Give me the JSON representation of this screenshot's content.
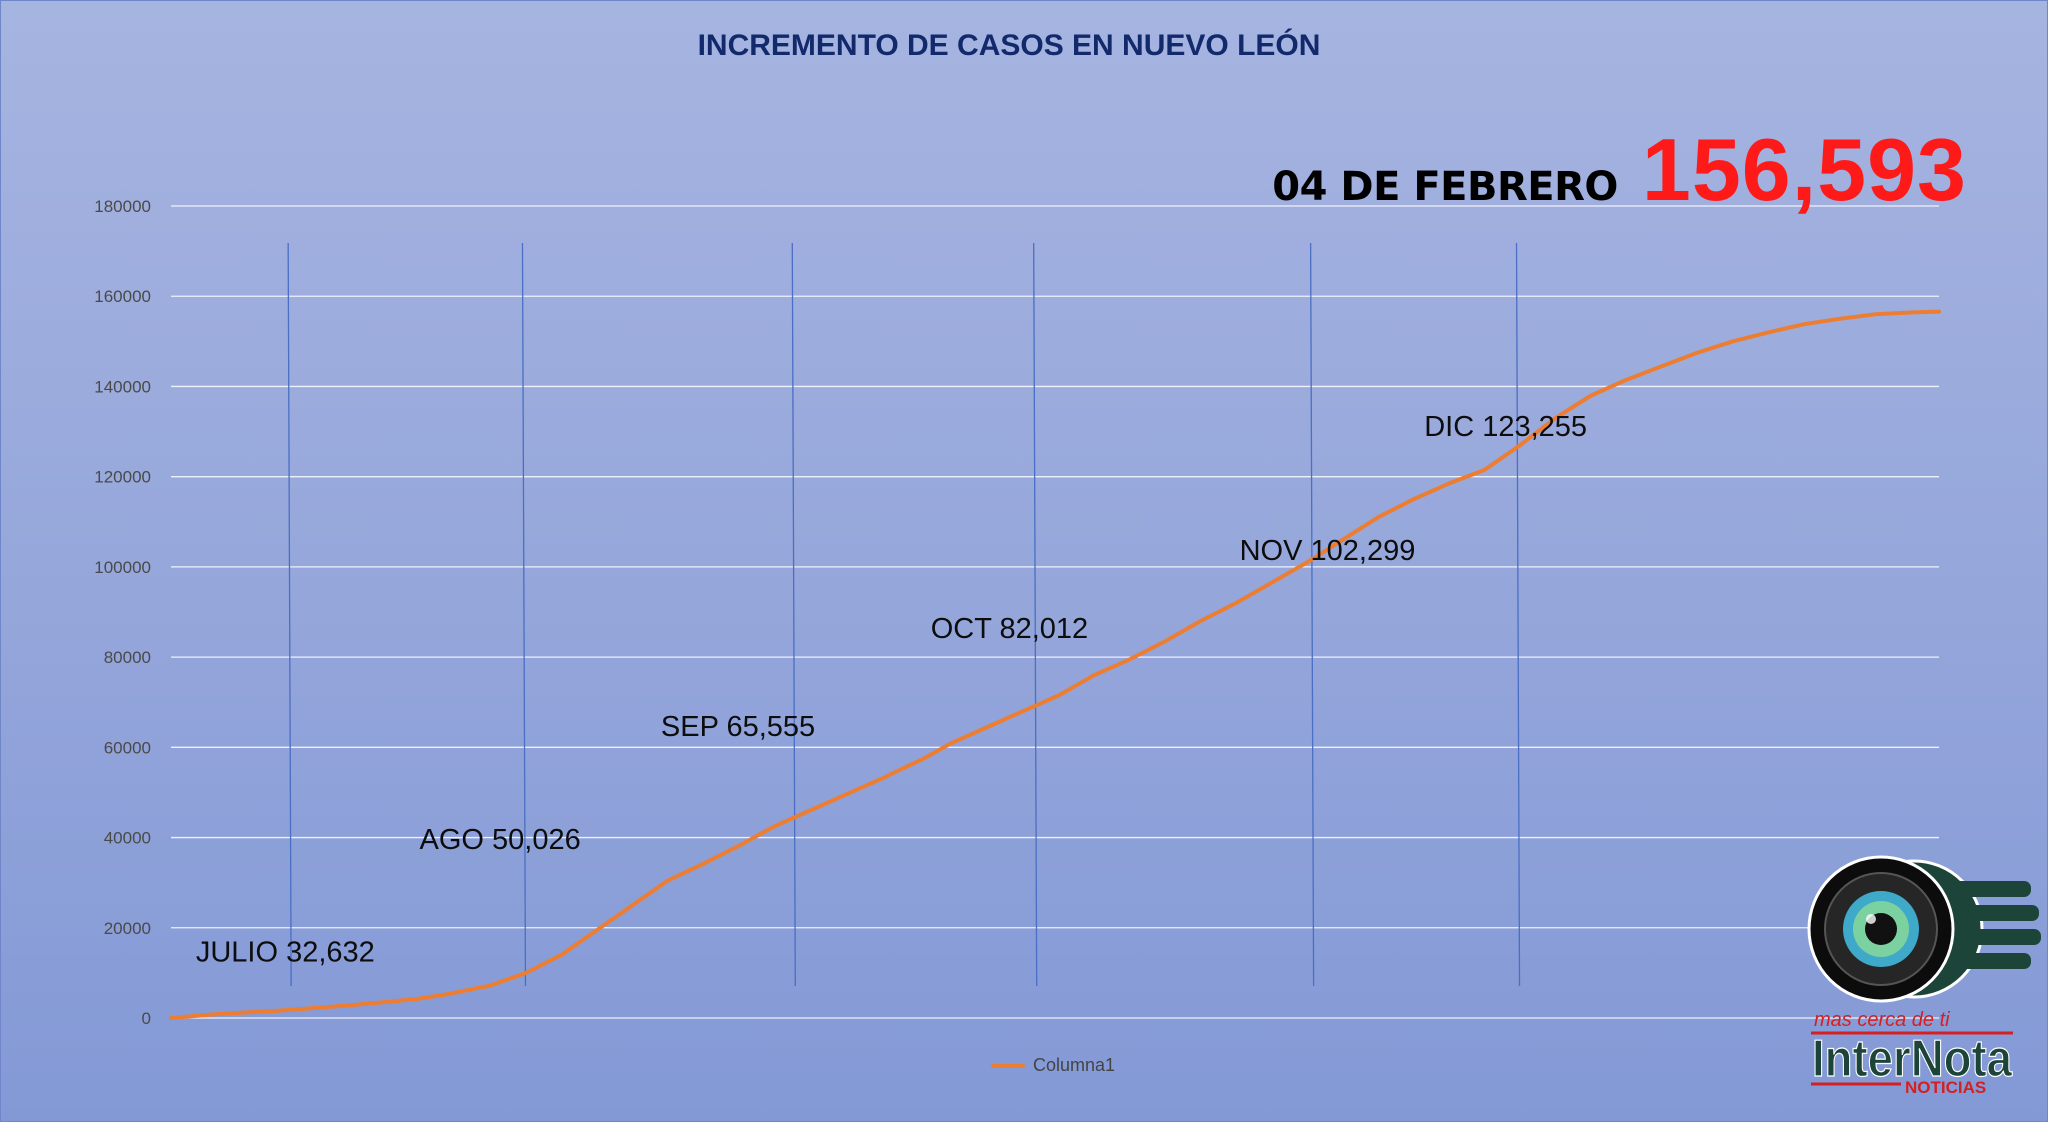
{
  "title": "INCREMENTO DE CASOS EN NUEVO LEÓN",
  "headline": {
    "date": "04 DE FEBRERO",
    "value": "156,593",
    "value_color": "#ff1a1a"
  },
  "legend": {
    "label": "Columna1",
    "color": "#ed7d31"
  },
  "logo": {
    "tagline": "mas cerca de ti",
    "name": "InterNota",
    "sub": "NOTICIAS"
  },
  "chart_data": {
    "type": "line",
    "title": "INCREMENTO DE CASOS EN NUEVO LEÓN",
    "xlabel": "",
    "ylabel": "",
    "ylim": [
      0,
      180000
    ],
    "yticks": [
      0,
      20000,
      40000,
      60000,
      80000,
      100000,
      120000,
      140000,
      160000,
      180000
    ],
    "grid": true,
    "legend_position": "bottom",
    "series": [
      {
        "name": "Columna1",
        "color": "#ed7d31",
        "x": [
          0,
          12,
          20,
          30,
          40,
          50,
          60,
          70,
          78,
          90,
          100,
          110,
          120,
          130,
          140,
          150,
          160,
          170,
          180,
          190,
          200,
          212,
          220,
          230,
          240,
          250,
          260,
          270,
          280,
          290,
          300,
          310,
          320,
          330,
          340,
          350,
          360,
          370,
          380,
          390,
          400,
          410,
          420,
          430,
          440,
          450,
          460,
          470,
          480,
          490,
          498
        ],
        "values": [
          0,
          800,
          1200,
          1600,
          2200,
          2800,
          3500,
          4300,
          5300,
          7200,
          10000,
          14000,
          19500,
          25000,
          30500,
          34200,
          38200,
          42500,
          46000,
          49500,
          53000,
          57500,
          61000,
          64500,
          68000,
          71500,
          76000,
          79500,
          83500,
          88000,
          92000,
          96500,
          101000,
          106000,
          111000,
          115000,
          118500,
          121500,
          127000,
          133000,
          138000,
          141500,
          144500,
          147500,
          150000,
          152000,
          153800,
          155000,
          156000,
          156400,
          156593
        ]
      }
    ],
    "month_dividers": [
      33,
      99,
      175,
      243,
      321,
      379
    ],
    "annotations": [
      {
        "text": "JULIO 32,632",
        "x": 7,
        "y": 12500
      },
      {
        "text": "AGO 50,026",
        "x": 70,
        "y": 37500
      },
      {
        "text": "SEP 65,555",
        "x": 138,
        "y": 62500
      },
      {
        "text": "OCT 82,012",
        "x": 214,
        "y": 84200
      },
      {
        "text": "NOV 102,299",
        "x": 301,
        "y": 101500
      },
      {
        "text": "DIC 123,255",
        "x": 353,
        "y": 129000
      }
    ]
  }
}
